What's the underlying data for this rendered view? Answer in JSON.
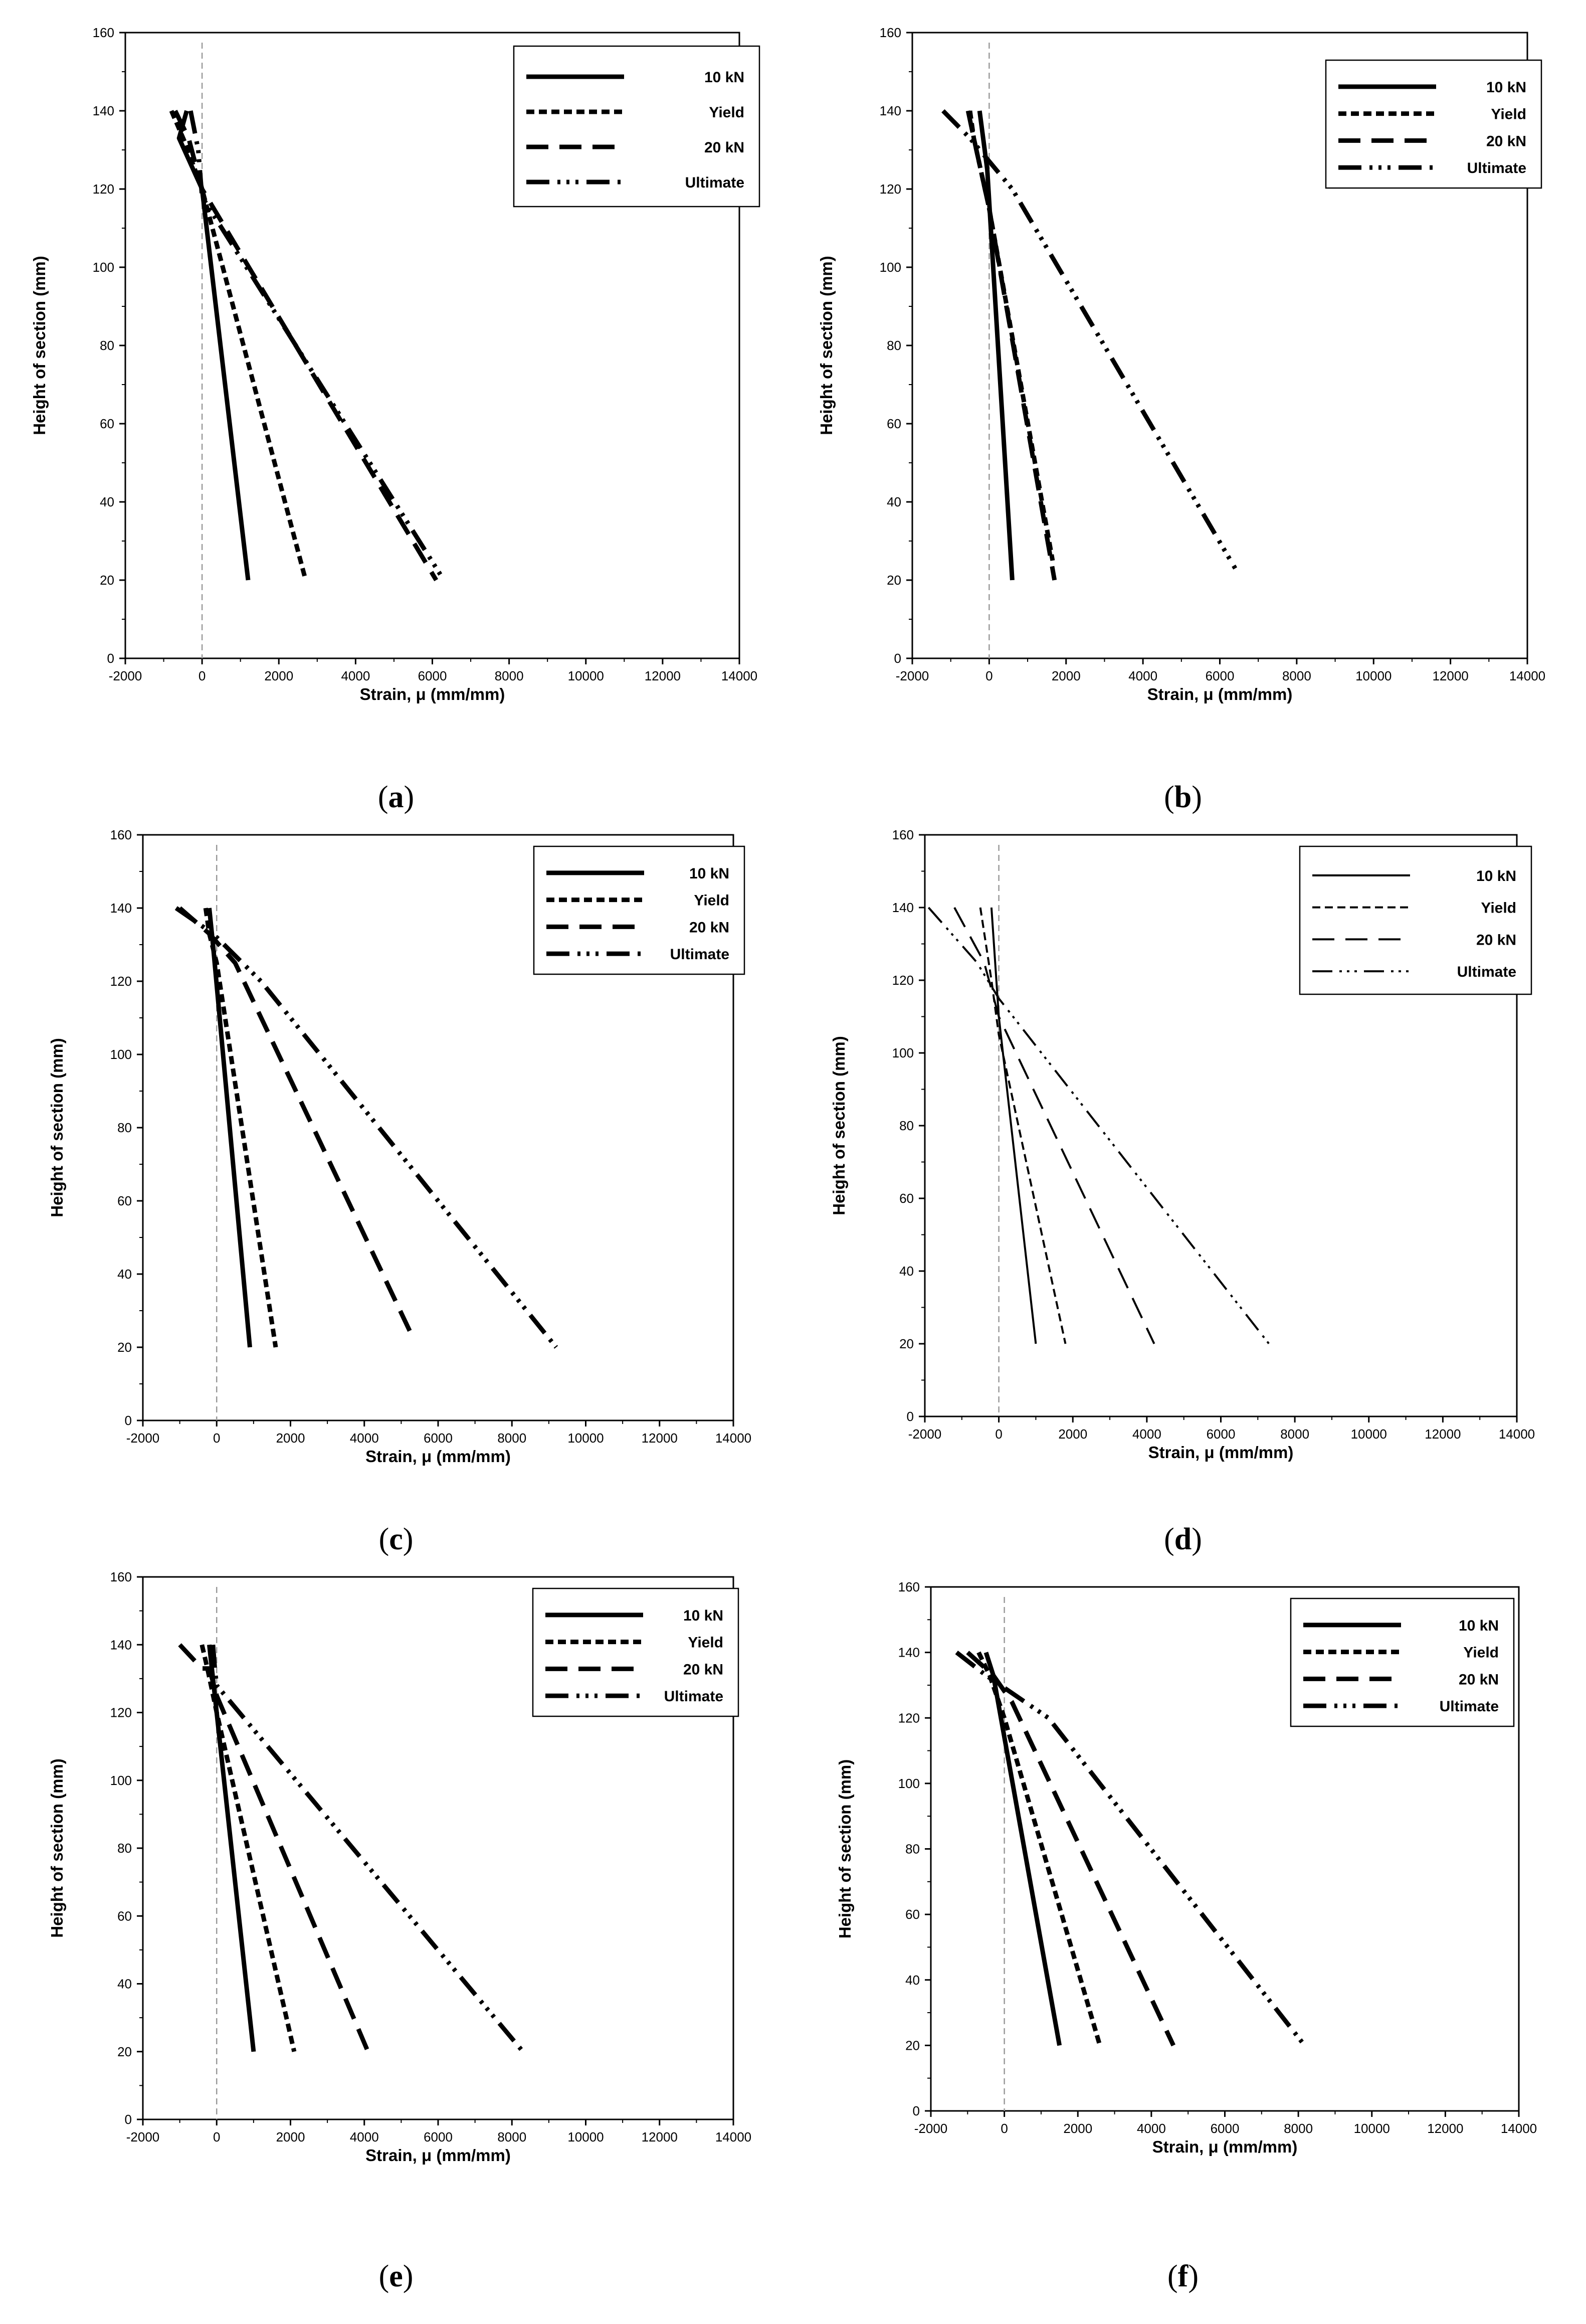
{
  "figure": {
    "panel_count": 6
  },
  "chart_data": [
    {
      "type": "line",
      "caption": "(a)",
      "caption_letter": "a",
      "xlabel": "Strain, μ (mm/mm)",
      "ylabel": "Height of section (mm)",
      "xlim": [
        -2000,
        14000
      ],
      "ylim": [
        0,
        160
      ],
      "xticks": [
        -2000,
        0,
        2000,
        4000,
        6000,
        8000,
        10000,
        12000,
        14000
      ],
      "yticks": [
        0,
        20,
        40,
        60,
        80,
        100,
        120,
        140,
        160
      ],
      "zero_line": true,
      "legend_position": "top-right",
      "series": [
        {
          "name": "10 kN",
          "points": [
            [
              -400,
              140
            ],
            [
              -600,
              133
            ],
            [
              0,
              120
            ],
            [
              1200,
              20
            ]
          ]
        },
        {
          "name": "Yield",
          "points": [
            [
              -800,
              140
            ],
            [
              -450,
              132
            ],
            [
              0,
              120
            ],
            [
              2700,
              20
            ]
          ]
        },
        {
          "name": "20 kN",
          "points": [
            [
              -700,
              140
            ],
            [
              -350,
              133
            ],
            [
              0,
              120
            ],
            [
              6100,
              20
            ]
          ]
        },
        {
          "name": "Ultimate",
          "points": [
            [
              -300,
              140
            ],
            [
              -100,
              130
            ],
            [
              0,
              118
            ],
            [
              6300,
              20
            ]
          ]
        }
      ]
    },
    {
      "type": "line",
      "caption": "(b)",
      "caption_letter": "b",
      "xlabel": "Strain, μ (mm/mm)",
      "ylabel": "Height of section (mm)",
      "xlim": [
        -2000,
        14000
      ],
      "ylim": [
        0,
        160
      ],
      "xticks": [
        -2000,
        0,
        2000,
        4000,
        6000,
        8000,
        10000,
        12000,
        14000
      ],
      "yticks": [
        0,
        20,
        40,
        60,
        80,
        100,
        120,
        140,
        160
      ],
      "zero_line": true,
      "legend_position": "top-right",
      "series": [
        {
          "name": "10 kN",
          "points": [
            [
              -250,
              140
            ],
            [
              -50,
              125
            ],
            [
              600,
              20
            ]
          ]
        },
        {
          "name": "Yield",
          "points": [
            [
              -500,
              140
            ],
            [
              -400,
              133
            ],
            [
              0,
              115
            ],
            [
              1650,
              25
            ]
          ]
        },
        {
          "name": "20 kN",
          "points": [
            [
              -550,
              140
            ],
            [
              -400,
              133
            ],
            [
              0,
              115
            ],
            [
              1700,
              20
            ]
          ]
        },
        {
          "name": "Ultimate",
          "points": [
            [
              -1200,
              140
            ],
            [
              -500,
              133
            ],
            [
              600,
              120
            ],
            [
              6400,
              23
            ]
          ]
        }
      ]
    },
    {
      "type": "line",
      "caption": "(c)",
      "caption_letter": "c",
      "xlabel": "Strain, μ (mm/mm)",
      "ylabel": "Height of section (mm)",
      "xlim": [
        -2000,
        14000
      ],
      "ylim": [
        0,
        160
      ],
      "xticks": [
        -2000,
        0,
        2000,
        4000,
        6000,
        8000,
        10000,
        12000,
        14000
      ],
      "yticks": [
        0,
        20,
        40,
        60,
        80,
        100,
        120,
        140,
        160
      ],
      "zero_line": true,
      "legend_position": "top-right",
      "series": [
        {
          "name": "10 kN",
          "points": [
            [
              -200,
              140
            ],
            [
              -100,
              130
            ],
            [
              900,
              20
            ]
          ]
        },
        {
          "name": "Yield",
          "points": [
            [
              -300,
              140
            ],
            [
              -200,
              133
            ],
            [
              0,
              125
            ],
            [
              1600,
              20
            ]
          ]
        },
        {
          "name": "20 kN",
          "points": [
            [
              -1000,
              140
            ],
            [
              -200,
              133
            ],
            [
              500,
              125
            ],
            [
              5300,
              23
            ]
          ]
        },
        {
          "name": "Ultimate",
          "points": [
            [
              -1100,
              140
            ],
            [
              -100,
              133
            ],
            [
              1200,
              120
            ],
            [
              9200,
              20
            ]
          ]
        }
      ]
    },
    {
      "type": "line",
      "caption": "(d)",
      "caption_letter": "d",
      "xlabel": "Strain, μ (mm/mm)",
      "ylabel": "Height of section (mm)",
      "xlim": [
        -2000,
        14000
      ],
      "ylim": [
        0,
        160
      ],
      "xticks": [
        -2000,
        0,
        2000,
        4000,
        6000,
        8000,
        10000,
        12000,
        14000
      ],
      "yticks": [
        0,
        20,
        40,
        60,
        80,
        100,
        120,
        140,
        160
      ],
      "zero_line": true,
      "legend_position": "top-right",
      "series": [
        {
          "name": "10 kN",
          "points": [
            [
              -200,
              140
            ],
            [
              0,
              110
            ],
            [
              1000,
              20
            ]
          ]
        },
        {
          "name": "Yield",
          "points": [
            [
              -500,
              140
            ],
            [
              -200,
              120
            ],
            [
              0,
              105
            ],
            [
              1800,
              20
            ]
          ]
        },
        {
          "name": "20 kN",
          "points": [
            [
              -1200,
              140
            ],
            [
              -400,
              125
            ],
            [
              0,
              110
            ],
            [
              4200,
              20
            ]
          ]
        },
        {
          "name": "Ultimate",
          "points": [
            [
              -1900,
              140
            ],
            [
              -600,
              125
            ],
            [
              0,
              115
            ],
            [
              7300,
              20
            ]
          ]
        }
      ]
    },
    {
      "type": "line",
      "caption": "(e)",
      "caption_letter": "e",
      "xlabel": "Strain, μ (mm/mm)",
      "ylabel": "Height of section (mm)",
      "xlim": [
        -2000,
        14000
      ],
      "ylim": [
        0,
        160
      ],
      "xticks": [
        -2000,
        0,
        2000,
        4000,
        6000,
        8000,
        10000,
        12000,
        14000
      ],
      "yticks": [
        0,
        20,
        40,
        60,
        80,
        100,
        120,
        140,
        160
      ],
      "zero_line": true,
      "legend_position": "top-right",
      "series": [
        {
          "name": "10 kN",
          "points": [
            [
              -200,
              140
            ],
            [
              -100,
              130
            ],
            [
              1000,
              20
            ]
          ]
        },
        {
          "name": "Yield",
          "points": [
            [
              -400,
              140
            ],
            [
              -250,
              133
            ],
            [
              0,
              120
            ],
            [
              2100,
              20
            ]
          ]
        },
        {
          "name": "20 kN",
          "points": [
            [
              -1000,
              140
            ],
            [
              -400,
              133
            ],
            [
              -200,
              133
            ],
            [
              0,
              125
            ],
            [
              4100,
              20
            ]
          ]
        },
        {
          "name": "Ultimate",
          "points": [
            [
              -100,
              140
            ],
            [
              -50,
              133
            ],
            [
              0,
              128
            ],
            [
              8300,
              20
            ]
          ]
        }
      ]
    },
    {
      "type": "line",
      "caption": "(f)",
      "caption_letter": "f",
      "xlabel": "Strain, μ (mm/mm)",
      "ylabel": "Height of section (mm)",
      "xlim": [
        -2000,
        14000
      ],
      "ylim": [
        0,
        160
      ],
      "xticks": [
        -2000,
        0,
        2000,
        4000,
        6000,
        8000,
        10000,
        12000,
        14000
      ],
      "yticks": [
        0,
        20,
        40,
        60,
        80,
        100,
        120,
        140,
        160
      ],
      "zero_line": true,
      "legend_position": "top-right",
      "series": [
        {
          "name": "10 kN",
          "points": [
            [
              -500,
              140
            ],
            [
              -300,
              133
            ],
            [
              1500,
              20
            ]
          ]
        },
        {
          "name": "Yield",
          "points": [
            [
              -700,
              140
            ],
            [
              -400,
              133
            ],
            [
              0,
              120
            ],
            [
              2600,
              20
            ]
          ]
        },
        {
          "name": "20 kN",
          "points": [
            [
              -1000,
              140
            ],
            [
              -300,
              133
            ],
            [
              200,
              125
            ],
            [
              4600,
              20
            ]
          ]
        },
        {
          "name": "Ultimate",
          "points": [
            [
              -1300,
              140
            ],
            [
              -500,
              133
            ],
            [
              1200,
              120
            ],
            [
              8100,
              21
            ]
          ]
        }
      ]
    }
  ]
}
